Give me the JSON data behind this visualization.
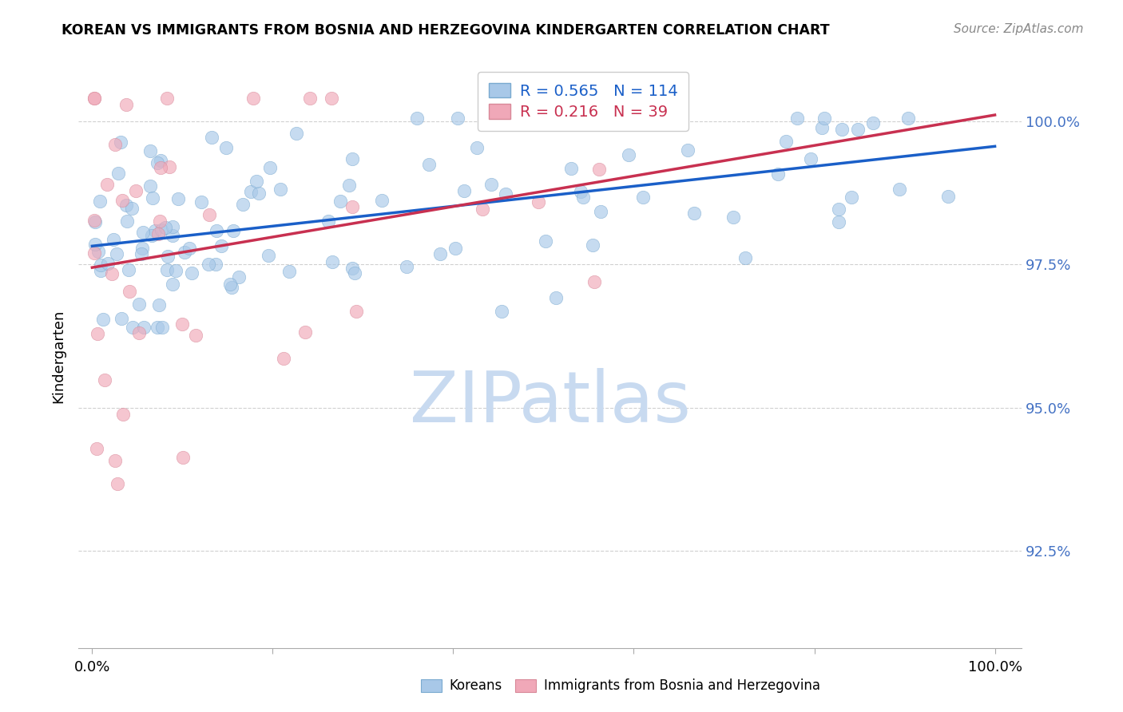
{
  "title": "KOREAN VS IMMIGRANTS FROM BOSNIA AND HERZEGOVINA KINDERGARTEN CORRELATION CHART",
  "source": "Source: ZipAtlas.com",
  "ylabel": "Kindergarten",
  "xlim": [
    -1.5,
    103
  ],
  "ylim": [
    90.8,
    101.0
  ],
  "ytick_vals": [
    92.5,
    95.0,
    97.5,
    100.0
  ],
  "ytick_labels": [
    "92.5%",
    "95.0%",
    "97.5%",
    "100.0%"
  ],
  "blue_R": 0.565,
  "blue_N": 114,
  "pink_R": 0.216,
  "pink_N": 39,
  "blue_color": "#a8c8e8",
  "blue_edge_color": "#7aaad0",
  "pink_color": "#f0a8b8",
  "pink_edge_color": "#d88898",
  "blue_line_color": "#1a5fc8",
  "pink_line_color": "#c83050",
  "ytick_color": "#4472c4",
  "grid_color": "#d0d0d0",
  "watermark_color": "#c8daf0",
  "title_fontsize": 12.5,
  "source_fontsize": 11,
  "tick_fontsize": 13,
  "legend_fontsize": 14,
  "ylabel_fontsize": 13,
  "scatter_size": 140,
  "scatter_alpha": 0.65,
  "line_width": 2.5
}
